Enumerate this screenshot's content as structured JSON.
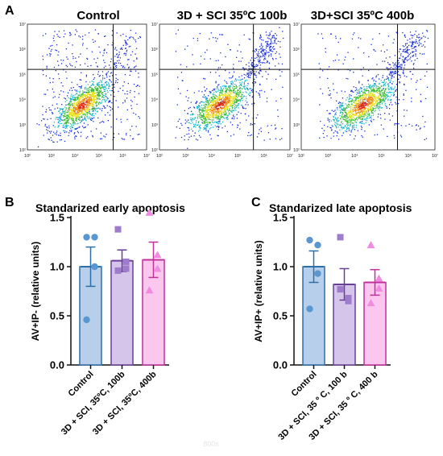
{
  "panels": {
    "A": "A",
    "B": "B",
    "C": "C"
  },
  "flow": {
    "titles": [
      "Control",
      "3D + SCI 35ºC 100b",
      "3D+SCI 35ºC 400b"
    ],
    "tick_labels": [
      "10²",
      "10³",
      "10⁴",
      "10⁵",
      "10⁶",
      "10⁷"
    ],
    "quadrant_x": 5.6,
    "quadrant_y": 5.2
  },
  "watermark": "800s",
  "chart_data": [
    {
      "type": "bar",
      "title": "Standarized early apoptosis",
      "ylabel": "AV+IP- (relative units)",
      "ylim": [
        0,
        1.5
      ],
      "yticks": [
        "0.0",
        "0.5",
        "1.0",
        "1.5"
      ],
      "categories": [
        "Control",
        "3D + SCI, 35ºC, 100b",
        "3D + SCI, 35ºC, 400b"
      ],
      "values": [
        1.0,
        1.06,
        1.07
      ],
      "errors": [
        0.2,
        0.11,
        0.18
      ],
      "points": [
        [
          1.3,
          1.3,
          1.0,
          0.46
        ],
        [
          1.38,
          1.05,
          0.98,
          0.96
        ],
        [
          1.55,
          1.12,
          0.98,
          0.76
        ]
      ],
      "markers": [
        "circle",
        "square",
        "triangle"
      ],
      "fills": [
        "#b7cfea",
        "#d5c5ea",
        "#fbc7ef"
      ],
      "strokes": [
        "#2f6fa8",
        "#6a3f96",
        "#c12f9b"
      ],
      "dots": [
        "#5a96cf",
        "#9e7ccb",
        "#f08ce0"
      ]
    },
    {
      "type": "bar",
      "title": "Standarized late apoptosis",
      "ylabel": "AV+IP+ (relative units)",
      "ylim": [
        0,
        1.5
      ],
      "yticks": [
        "0.0",
        "0.5",
        "1.0",
        "1.5"
      ],
      "categories": [
        "Control",
        "3D + SCI, 35 º C, 100 b",
        "3D + SCI, 35 º C, 400 b"
      ],
      "values": [
        1.0,
        0.82,
        0.84
      ],
      "errors": [
        0.16,
        0.16,
        0.13
      ],
      "points": [
        [
          1.27,
          1.22,
          0.93,
          0.57
        ],
        [
          1.3,
          0.68,
          0.65,
          0.77
        ],
        [
          1.22,
          0.88,
          0.78,
          0.63
        ]
      ],
      "markers": [
        "circle",
        "square",
        "triangle"
      ],
      "fills": [
        "#b7cfea",
        "#d5c5ea",
        "#fbc7ef"
      ],
      "strokes": [
        "#2f6fa8",
        "#6a3f96",
        "#c12f9b"
      ],
      "dots": [
        "#5a96cf",
        "#9e7ccb",
        "#f08ce0"
      ]
    }
  ]
}
